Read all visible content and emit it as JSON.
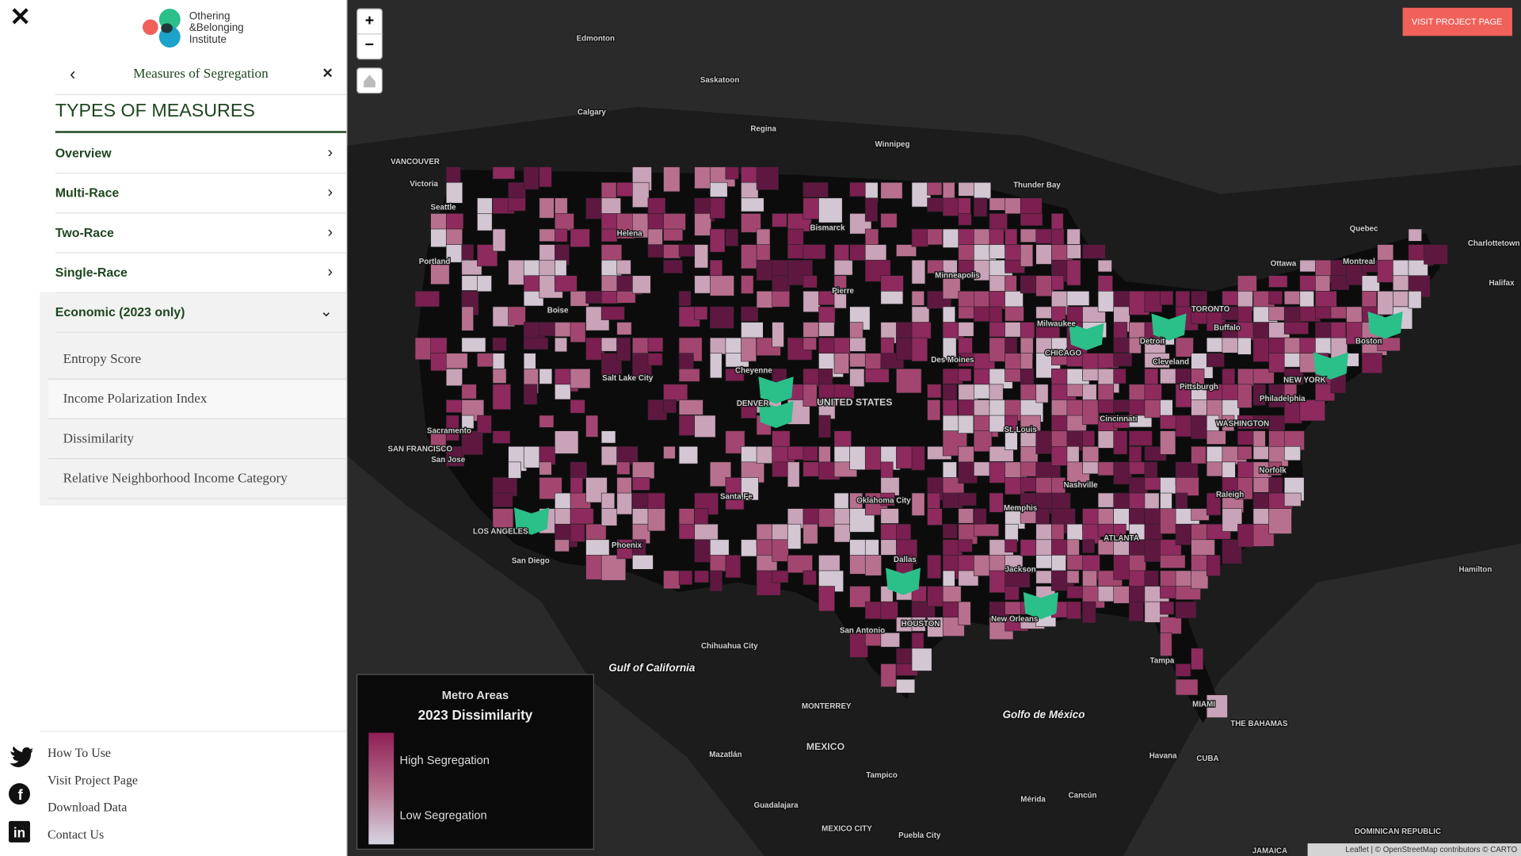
{
  "logo": {
    "lines": [
      "Othering",
      "&Belonging",
      "Institute"
    ]
  },
  "panel": {
    "title": "Measures of Segregation",
    "heading": "TYPES OF MEASURES",
    "items": [
      "Overview",
      "Multi-Race",
      "Two-Race",
      "Single-Race",
      "Economic (2023 only)"
    ],
    "subitems": [
      "Entropy Score",
      "Income Polarization Index",
      "Dissimilarity",
      "Relative Neighborhood Income Category"
    ]
  },
  "footer_links": [
    "How To Use",
    "Visit Project Page",
    "Download Data",
    "Contact Us"
  ],
  "map": {
    "button": "VISIT PROJECT PAGE",
    "zoom_in": "+",
    "zoom_out": "−",
    "labels": [
      "Edmonton",
      "Saskatoon",
      "Calgary",
      "Regina",
      "Winnipeg",
      "VANCOUVER",
      "Victoria",
      "Seattle",
      "Thunder Bay",
      "Helena",
      "Bismarck",
      "Quebec",
      "Charlottetown",
      "Portland",
      "Ottawa",
      "Montreal",
      "Minneapolis",
      "Halifax",
      "Pierre",
      "Boise",
      "TORONTO",
      "Buffalo",
      "Milwaukee",
      "Boston",
      "Detroit",
      "CHICAGO",
      "Des Moines",
      "Cleveland",
      "Cheyenne",
      "Salt Lake City",
      "NEW YORK",
      "Pittsburgh",
      "Philadelphia",
      "DENVER",
      "UNITED STATES",
      "Cincinnati",
      "WASHINGTON",
      "St. Louis",
      "Sacramento",
      "SAN FRANCISCO",
      "San Jose",
      "Norfolk",
      "Nashville",
      "Santa Fe",
      "Oklahoma City",
      "Raleigh",
      "Memphis",
      "LOS ANGELES",
      "ATLANTA",
      "Phoenix",
      "San Diego",
      "Dallas",
      "Jackson",
      "Hamilton",
      "New Orleans",
      "HOUSTON",
      "San Antonio",
      "Chihuahua City",
      "Gulf of California",
      "Tampa",
      "MIAMI",
      "Golfo de México",
      "MONTERREY",
      "THE BAHAMAS",
      "MEXICO",
      "Mazatlán",
      "Havana",
      "CUBA",
      "Tampico",
      "Mérida",
      "Cancún",
      "Guadalajara",
      "DOMINICAN REPUBLIC",
      "MEXICO CITY",
      "Puebla City",
      "JAMAICA"
    ],
    "legend": {
      "subtitle": "Metro Areas",
      "title": "2023 Dissimilarity",
      "high": "High Segregation",
      "low": "Low Segregation"
    },
    "attribution": "Leaflet | © OpenStreetMap contributors © CARTO"
  }
}
